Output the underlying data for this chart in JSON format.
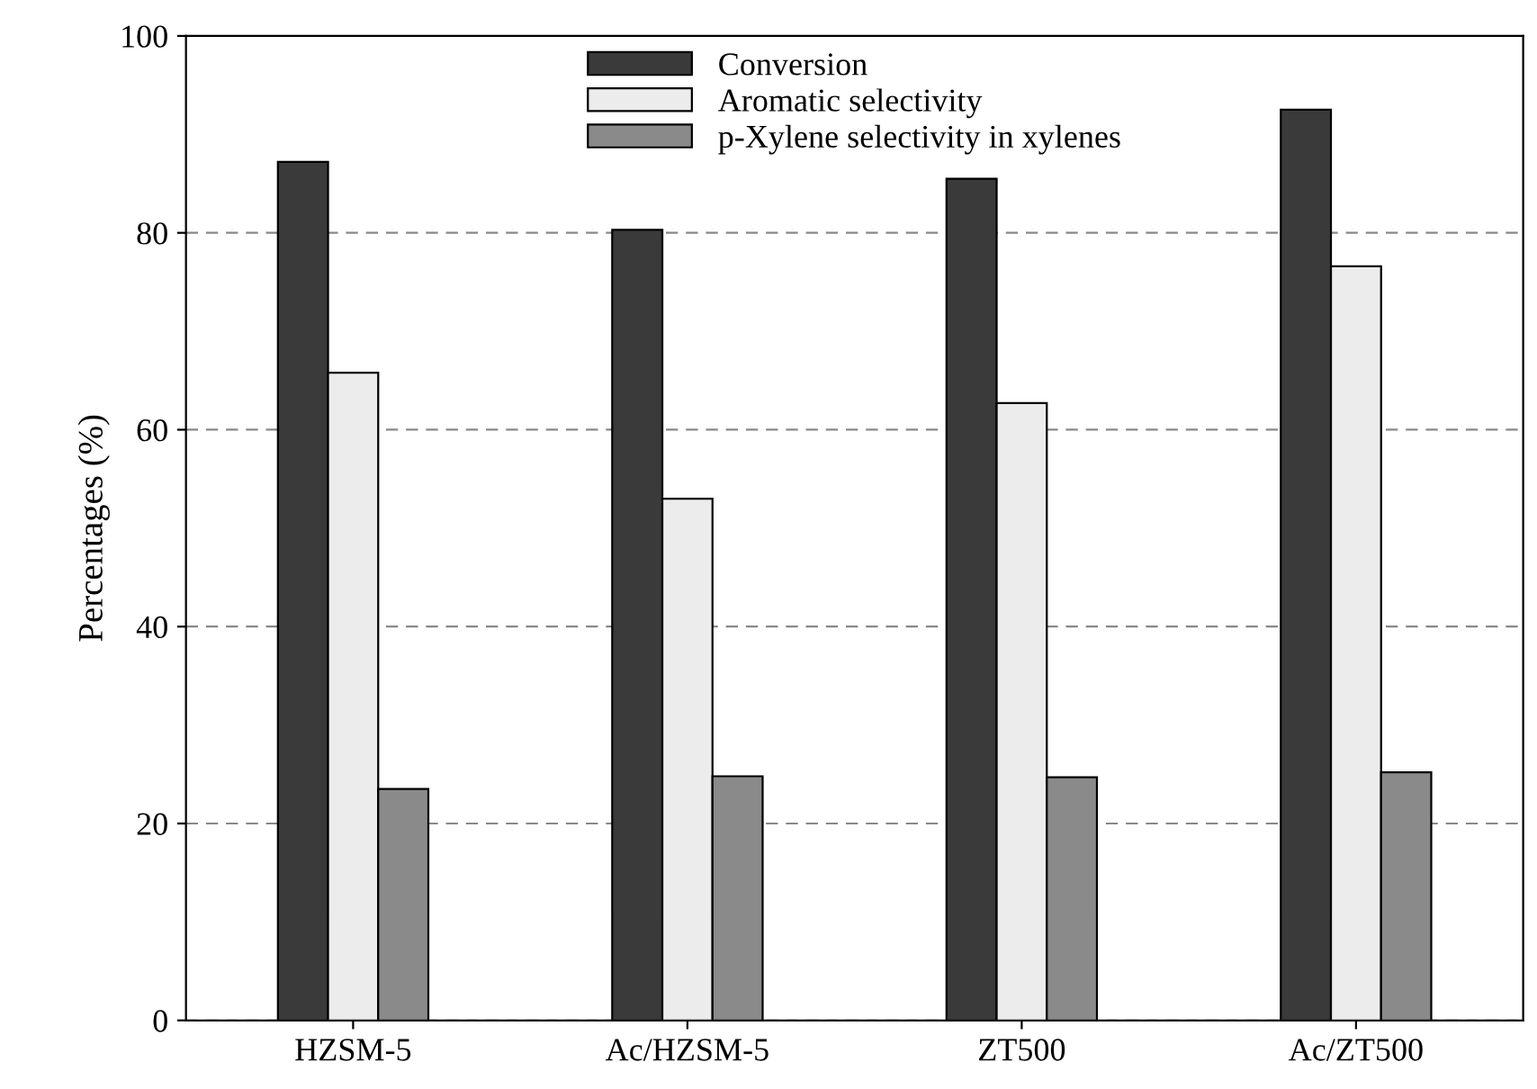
{
  "chart_data": {
    "type": "bar",
    "ylabel": "Percentages (%)",
    "categories": [
      "HZSM-5",
      "Ac/HZSM-5",
      "ZT500",
      "Ac/ZT500"
    ],
    "series": [
      {
        "name": "Conversion",
        "color": "#3a3a3a",
        "values": [
          87.2,
          80.3,
          85.5,
          92.5
        ]
      },
      {
        "name": "Aromatic selectivity",
        "color": "#ececec",
        "values": [
          65.8,
          53.0,
          62.7,
          76.6
        ]
      },
      {
        "name": "p-Xylene selectivity in xylenes",
        "color": "#8a8a8a",
        "values": [
          23.5,
          24.8,
          24.7,
          25.2
        ]
      }
    ],
    "ylim": [
      0,
      100
    ],
    "yticks": [
      0,
      20,
      40,
      60,
      80,
      100
    ],
    "grid": "y",
    "legend": "top"
  }
}
